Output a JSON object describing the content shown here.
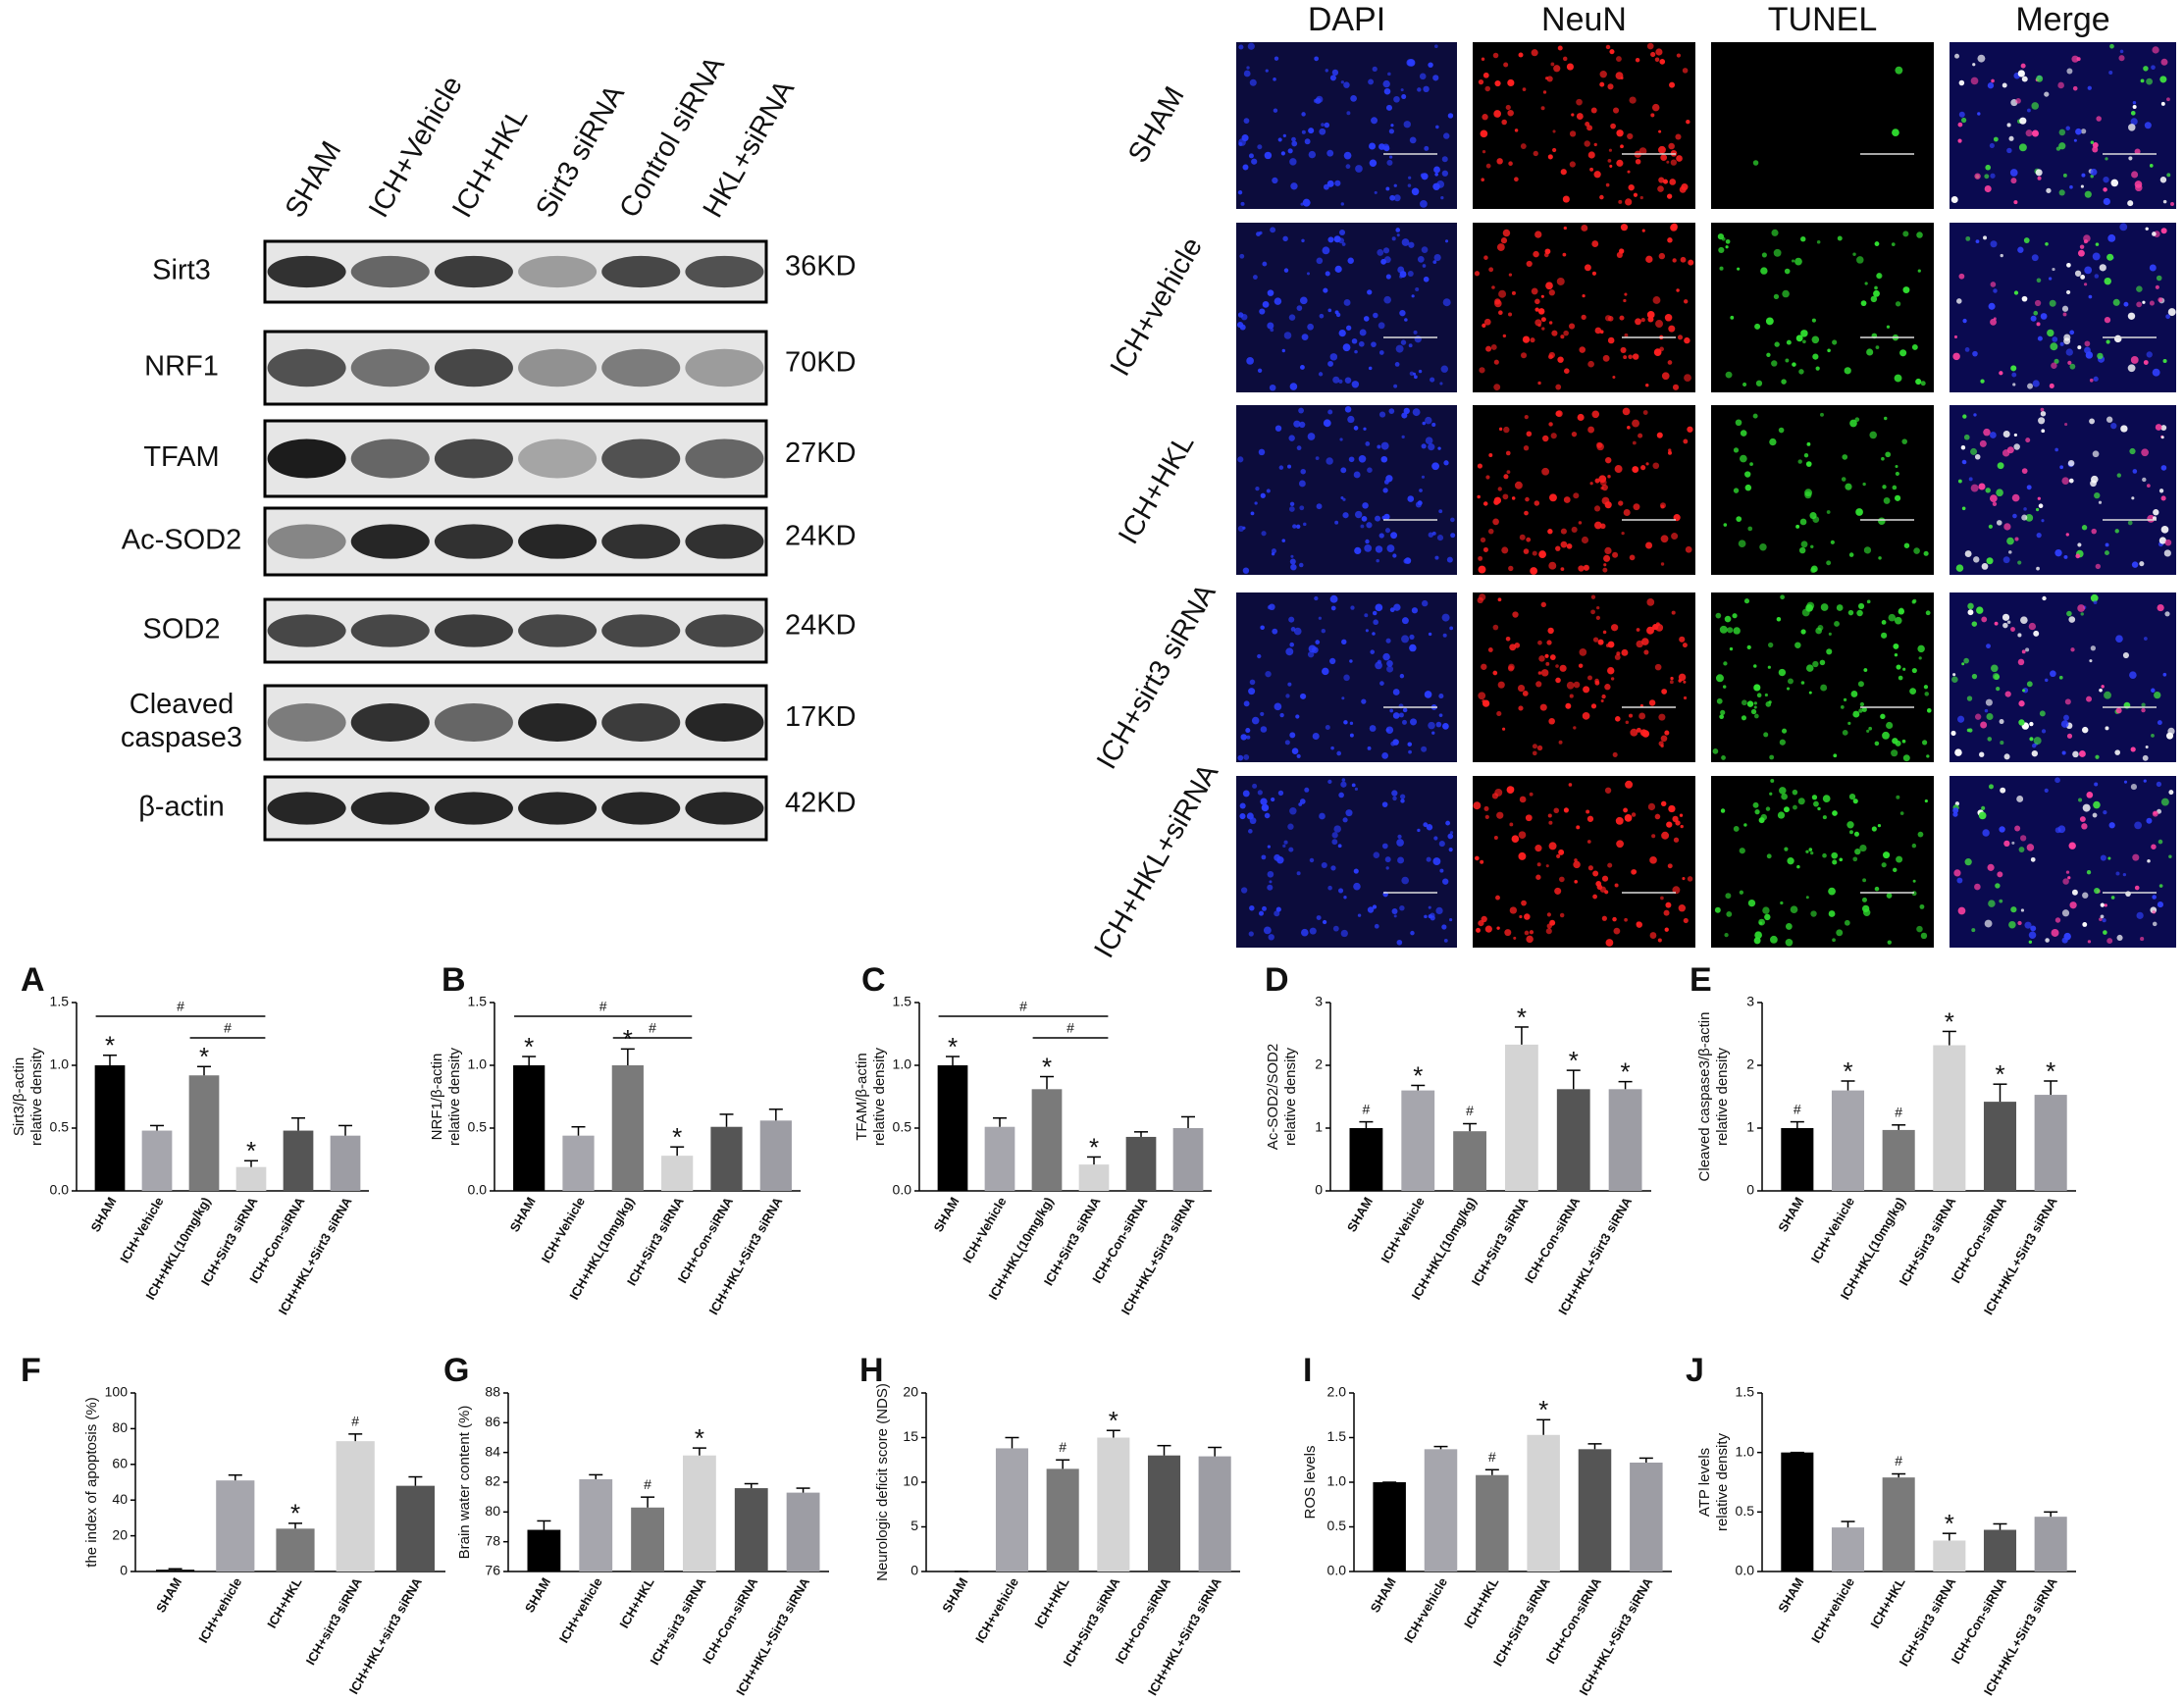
{
  "western_blot": {
    "lanes": [
      "SHAM",
      "ICH+Vehicle",
      "ICH+HKL",
      "Sirt3 siRNA",
      "Control siRNA",
      "HKL+siRNA"
    ],
    "rows": [
      {
        "label": [
          "Sirt3"
        ],
        "size": "36KD"
      },
      {
        "label": [
          "NRF1"
        ],
        "size": "70KD"
      },
      {
        "label": [
          "TFAM"
        ],
        "size": "27KD"
      },
      {
        "label": [
          "Ac-SOD2"
        ],
        "size": "24KD"
      },
      {
        "label": [
          "SOD2"
        ],
        "size": "24KD"
      },
      {
        "label": [
          "Cleaved",
          "caspase3"
        ],
        "size": "17KD"
      },
      {
        "label": [
          "β-actin"
        ],
        "size": "42KD"
      }
    ]
  },
  "immunofluorescence": {
    "columns": [
      "DAPI",
      "NeuN",
      "TUNEL",
      "Merge"
    ],
    "rows": [
      "SHAM",
      "ICH+vehicle",
      "ICH+HKL",
      "ICH+sirt3 siRNA",
      "ICH+HKL+siRNA"
    ]
  },
  "chart_data": [
    {
      "type": "bar",
      "label": "A",
      "ylabel": [
        "Sirt3/β-actin",
        "relative density"
      ],
      "categories": [
        "SHAM",
        "ICH+Vehicle",
        "ICH+HKL(10mg/kg)",
        "ICH+Sirt3 siRNA",
        "ICH+Con-siRNA",
        "ICH+HKL+Sirt3 siRNA"
      ],
      "values": [
        1.0,
        0.48,
        0.92,
        0.19,
        0.48,
        0.44
      ],
      "errors": [
        0.08,
        0.04,
        0.07,
        0.05,
        0.1,
        0.08
      ],
      "colors": [
        "#000000",
        "#a6a6ad",
        "#7a7a7a",
        "#d4d4d4",
        "#555555",
        "#9d9da4"
      ],
      "markers": [
        "*",
        null,
        "*",
        "*",
        null,
        null
      ],
      "brackets": [
        {
          "from": "SHAM",
          "to": "ICH+Sirt3 siRNA",
          "label": "#"
        },
        {
          "from": "ICH+HKL(10mg/kg)",
          "to": "ICH+Sirt3 siRNA",
          "label": "#"
        }
      ],
      "ylim": [
        0,
        1.5
      ],
      "yticks": [
        {
          "value": 0,
          "label": "0.0"
        },
        0.5,
        {
          "value": 1,
          "label": "1.0"
        },
        1.5
      ]
    },
    {
      "type": "bar",
      "label": "B",
      "ylabel": [
        "NRF1/β-actin",
        "relative density"
      ],
      "categories": [
        "SHAM",
        "ICH+Vehicle",
        "ICH+HKL(10mg/kg)",
        "ICH+Sirt3 siRNA",
        "ICH+Con-siRNA",
        "ICH+HKL+Sirt3 siRNA"
      ],
      "values": [
        1.0,
        0.44,
        1.0,
        0.28,
        0.51,
        0.56
      ],
      "errors": [
        0.07,
        0.07,
        0.13,
        0.07,
        0.1,
        0.09
      ],
      "colors": [
        "#000000",
        "#a6a6ad",
        "#7a7a7a",
        "#d4d4d4",
        "#555555",
        "#9d9da4"
      ],
      "markers": [
        "*",
        null,
        "*",
        "*",
        null,
        null
      ],
      "brackets": [
        {
          "from": "SHAM",
          "to": "ICH+Sirt3 siRNA",
          "label": "#"
        },
        {
          "from": "ICH+HKL(10mg/kg)",
          "to": "ICH+Sirt3 siRNA",
          "label": "#"
        }
      ],
      "ylim": [
        0,
        1.5
      ],
      "yticks": [
        {
          "value": 0,
          "label": "0.0"
        },
        0.5,
        {
          "value": 1,
          "label": "1.0"
        },
        1.5
      ]
    },
    {
      "type": "bar",
      "label": "C",
      "ylabel": [
        "TFAM/β-actin",
        "relative density"
      ],
      "categories": [
        "SHAM",
        "ICH+Vehicle",
        "ICH+HKL(10mg/kg)",
        "ICH+Sirt3 siRNA",
        "ICH+Con-siRNA",
        "ICH+HKL+Sirt3 siRNA"
      ],
      "values": [
        1.0,
        0.51,
        0.81,
        0.21,
        0.43,
        0.5
      ],
      "errors": [
        0.07,
        0.07,
        0.1,
        0.06,
        0.04,
        0.09
      ],
      "colors": [
        "#000000",
        "#a6a6ad",
        "#7a7a7a",
        "#d4d4d4",
        "#555555",
        "#9d9da4"
      ],
      "markers": [
        "*",
        null,
        "*",
        "*",
        null,
        null
      ],
      "brackets": [
        {
          "from": "SHAM",
          "to": "ICH+Sirt3 siRNA",
          "label": "#"
        },
        {
          "from": "ICH+HKL(10mg/kg)",
          "to": "ICH+Sirt3 siRNA",
          "label": "#"
        }
      ],
      "ylim": [
        0,
        1.5
      ],
      "yticks": [
        {
          "value": 0,
          "label": "0.0"
        },
        0.5,
        {
          "value": 1,
          "label": "1.0"
        },
        1.5
      ]
    },
    {
      "type": "bar",
      "label": "D",
      "ylabel": [
        "Ac-SOD2/SOD2",
        "relative density"
      ],
      "categories": [
        "SHAM",
        "ICH+Vehicle",
        "ICH+HKL(10mg/kg)",
        "ICH+Sirt3 siRNA",
        "ICH+Con-siRNA",
        "ICH+HKL+Sirt3 siRNA"
      ],
      "values": [
        1.0,
        1.6,
        0.95,
        2.33,
        1.62,
        1.62
      ],
      "errors": [
        0.1,
        0.08,
        0.12,
        0.28,
        0.3,
        0.12
      ],
      "colors": [
        "#000000",
        "#a6a6ad",
        "#7a7a7a",
        "#d4d4d4",
        "#555555",
        "#9d9da4"
      ],
      "markers": [
        "#",
        "*",
        "#",
        "*",
        "*",
        "*"
      ],
      "ylim": [
        0,
        3
      ],
      "yticks": [
        0,
        1,
        2,
        3
      ]
    },
    {
      "type": "bar",
      "label": "E",
      "ylabel": [
        "Cleaved caspase3/β-actin",
        "relative density"
      ],
      "categories": [
        "SHAM",
        "ICH+Vehicle",
        "ICH+HKL(10mg/kg)",
        "ICH+Sirt3 siRNA",
        "ICH+Con-siRNA",
        "ICH+HKL+Sirt3 siRNA"
      ],
      "values": [
        1.0,
        1.6,
        0.97,
        2.32,
        1.42,
        1.53
      ],
      "errors": [
        0.1,
        0.15,
        0.08,
        0.22,
        0.28,
        0.22
      ],
      "colors": [
        "#000000",
        "#a6a6ad",
        "#7a7a7a",
        "#d4d4d4",
        "#555555",
        "#9d9da4"
      ],
      "markers": [
        "#",
        "*",
        "#",
        "*",
        "*",
        "*"
      ],
      "ylim": [
        0,
        3
      ],
      "yticks": [
        0,
        1,
        2,
        3
      ]
    },
    {
      "type": "bar",
      "label": "F",
      "ylabel": [
        "the index of apoptosis (%)"
      ],
      "categories": [
        "SHAM",
        "ICH+vehicle",
        "ICH+HKL",
        "ICH+sirt3 siRNA",
        "ICH+HKL+sirt3 siRNA"
      ],
      "values": [
        1,
        51,
        24,
        73,
        48
      ],
      "errors": [
        0.5,
        3,
        3,
        4,
        5
      ],
      "colors": [
        "#000000",
        "#a6a6ad",
        "#7a7a7a",
        "#d4d4d4",
        "#555555"
      ],
      "markers": [
        null,
        null,
        "*",
        "#",
        null
      ],
      "ylim": [
        0,
        100
      ],
      "yticks": [
        0,
        20,
        40,
        60,
        80,
        100
      ]
    },
    {
      "type": "bar",
      "label": "G",
      "ylabel": [
        "Brain water content (%)"
      ],
      "categories": [
        "SHAM",
        "ICH+vehicle",
        "ICH+HKL",
        "ICH+sirt3 siRNA",
        "ICH+Con-siRNA",
        "ICH+HKL+Sirt3 siRNA"
      ],
      "values": [
        78.8,
        82.2,
        80.3,
        83.8,
        81.6,
        81.3
      ],
      "errors": [
        0.6,
        0.3,
        0.7,
        0.5,
        0.3,
        0.3
      ],
      "colors": [
        "#000000",
        "#a6a6ad",
        "#7a7a7a",
        "#d4d4d4",
        "#555555",
        "#9d9da4"
      ],
      "markers": [
        null,
        null,
        "#",
        "*",
        null,
        null
      ],
      "ylim": [
        76,
        88
      ],
      "yticks": [
        76,
        78,
        80,
        82,
        84,
        86,
        88
      ]
    },
    {
      "type": "bar",
      "label": "H",
      "ylabel": [
        "Neurologic deficit score (NDS)"
      ],
      "categories": [
        "SHAM",
        "ICH+vehicle",
        "ICH+HKL",
        "ICH+Sirt3 siRNA",
        "ICH+Con-siRNA",
        "ICH+HKL+Sirt3 siRNA"
      ],
      "values": [
        0,
        13.8,
        11.5,
        15,
        13,
        12.9
      ],
      "errors": [
        0,
        1.2,
        1,
        0.8,
        1.1,
        1
      ],
      "colors": [
        "#000000",
        "#a6a6ad",
        "#7a7a7a",
        "#d4d4d4",
        "#555555",
        "#9d9da4"
      ],
      "markers": [
        null,
        null,
        "#",
        "*",
        null,
        null
      ],
      "ylim": [
        0,
        20
      ],
      "yticks": [
        0,
        5,
        10,
        15,
        20
      ]
    },
    {
      "type": "bar",
      "label": "I",
      "ylabel": [
        "ROS levels"
      ],
      "categories": [
        "SHAM",
        "ICH+vehicle",
        "ICH+HKL",
        "ICH+Sirt3 siRNA",
        "ICH+Con-siRNA",
        "ICH+HKL+Sirt3 siRNA"
      ],
      "values": [
        1.0,
        1.37,
        1.08,
        1.53,
        1.37,
        1.22
      ],
      "errors": [
        0,
        0.03,
        0.06,
        0.17,
        0.06,
        0.05
      ],
      "colors": [
        "#000000",
        "#a6a6ad",
        "#7a7a7a",
        "#d4d4d4",
        "#555555",
        "#9d9da4"
      ],
      "markers": [
        null,
        null,
        "#",
        "*",
        null,
        null
      ],
      "ylim": [
        0,
        2
      ],
      "yticks": [
        {
          "value": 0,
          "label": "0.0"
        },
        0.5,
        {
          "value": 1,
          "label": "1.0"
        },
        1.5,
        {
          "value": 2,
          "label": "2.0"
        }
      ]
    },
    {
      "type": "bar",
      "label": "J",
      "ylabel": [
        "ATP levels",
        "relative density"
      ],
      "categories": [
        "SHAM",
        "ICH+vehicle",
        "ICH+HKL",
        "ICH+Sirt3 siRNA",
        "ICH+Con-siRNA",
        "ICH+HKL+Sirt3 siRNA"
      ],
      "values": [
        1.0,
        0.37,
        0.79,
        0.26,
        0.35,
        0.46
      ],
      "errors": [
        0,
        0.05,
        0.03,
        0.06,
        0.05,
        0.04
      ],
      "colors": [
        "#000000",
        "#a6a6ad",
        "#7a7a7a",
        "#d4d4d4",
        "#555555",
        "#9d9da4"
      ],
      "markers": [
        null,
        null,
        "#",
        "*",
        null,
        null
      ],
      "ylim": [
        0,
        1.5
      ],
      "yticks": [
        {
          "value": 0,
          "label": "0.0"
        },
        0.5,
        {
          "value": 1,
          "label": "1.0"
        },
        1.5
      ]
    }
  ]
}
